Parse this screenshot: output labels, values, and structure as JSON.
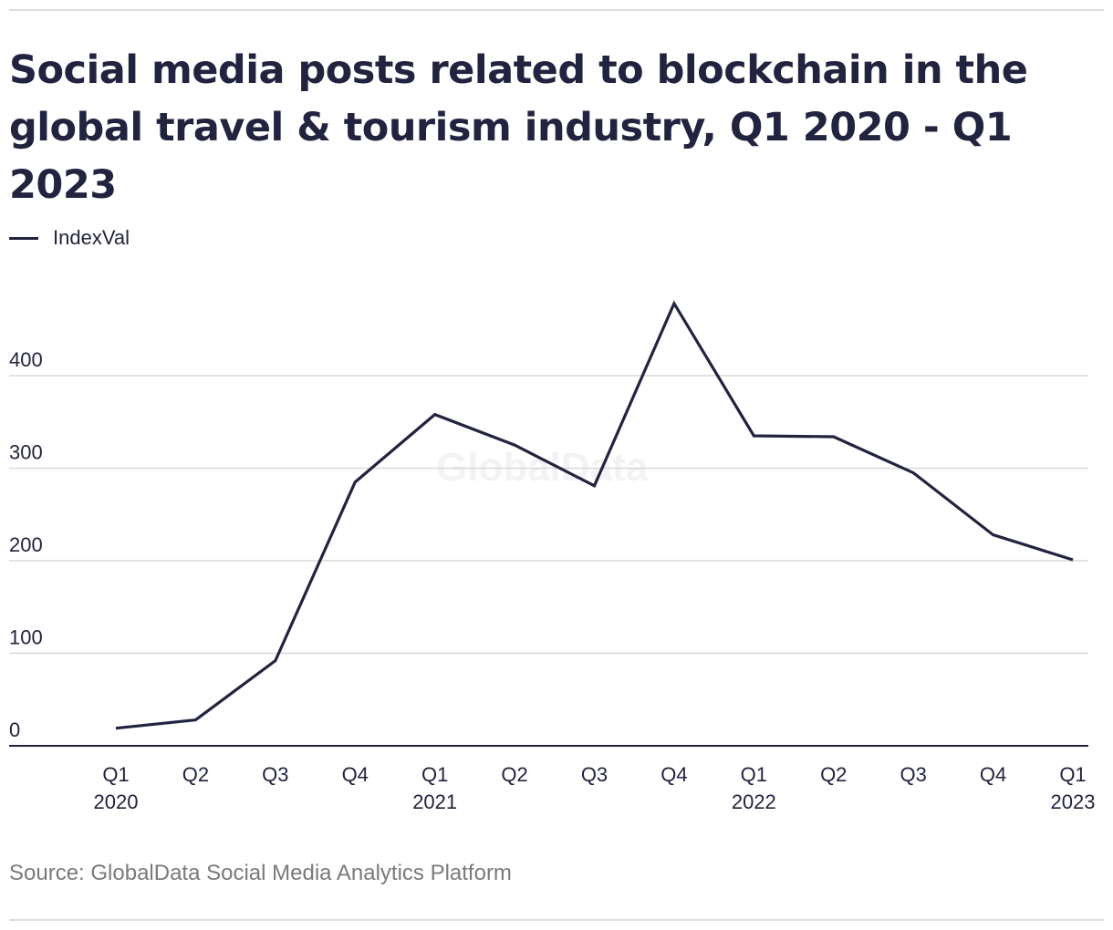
{
  "title": "Social media posts related to blockchain in the global travel & tourism industry, Q1 2020 - Q1 2023",
  "legend": {
    "label": "IndexVal",
    "color": "#22233f"
  },
  "watermark": "GlobalData",
  "source": "Source: GlobalData Social Media Analytics Platform",
  "chart_data": {
    "type": "line",
    "title": "Social media posts related to blockchain in the global travel & tourism industry, Q1 2020 - Q1 2023",
    "xlabel": "",
    "ylabel": "",
    "categories": [
      [
        "Q1",
        "2020"
      ],
      [
        "Q2",
        ""
      ],
      [
        "Q3",
        ""
      ],
      [
        "Q4",
        ""
      ],
      [
        "Q1",
        "2021"
      ],
      [
        "Q2",
        ""
      ],
      [
        "Q3",
        ""
      ],
      [
        "Q4",
        ""
      ],
      [
        "Q1",
        "2022"
      ],
      [
        "Q2",
        ""
      ],
      [
        "Q3",
        ""
      ],
      [
        "Q4",
        ""
      ],
      [
        "Q1",
        "2023"
      ]
    ],
    "series": [
      {
        "name": "IndexVal",
        "values": [
          19,
          28,
          92,
          285,
          358,
          325,
          281,
          478,
          335,
          334,
          295,
          228,
          201
        ]
      }
    ],
    "ylim": [
      0,
      480
    ],
    "yticks": [
      0,
      100,
      200,
      300,
      400
    ],
    "grid": true,
    "legend_position": "top-left",
    "line_color": "#22233f",
    "grid_color": "#d9d9d9"
  }
}
